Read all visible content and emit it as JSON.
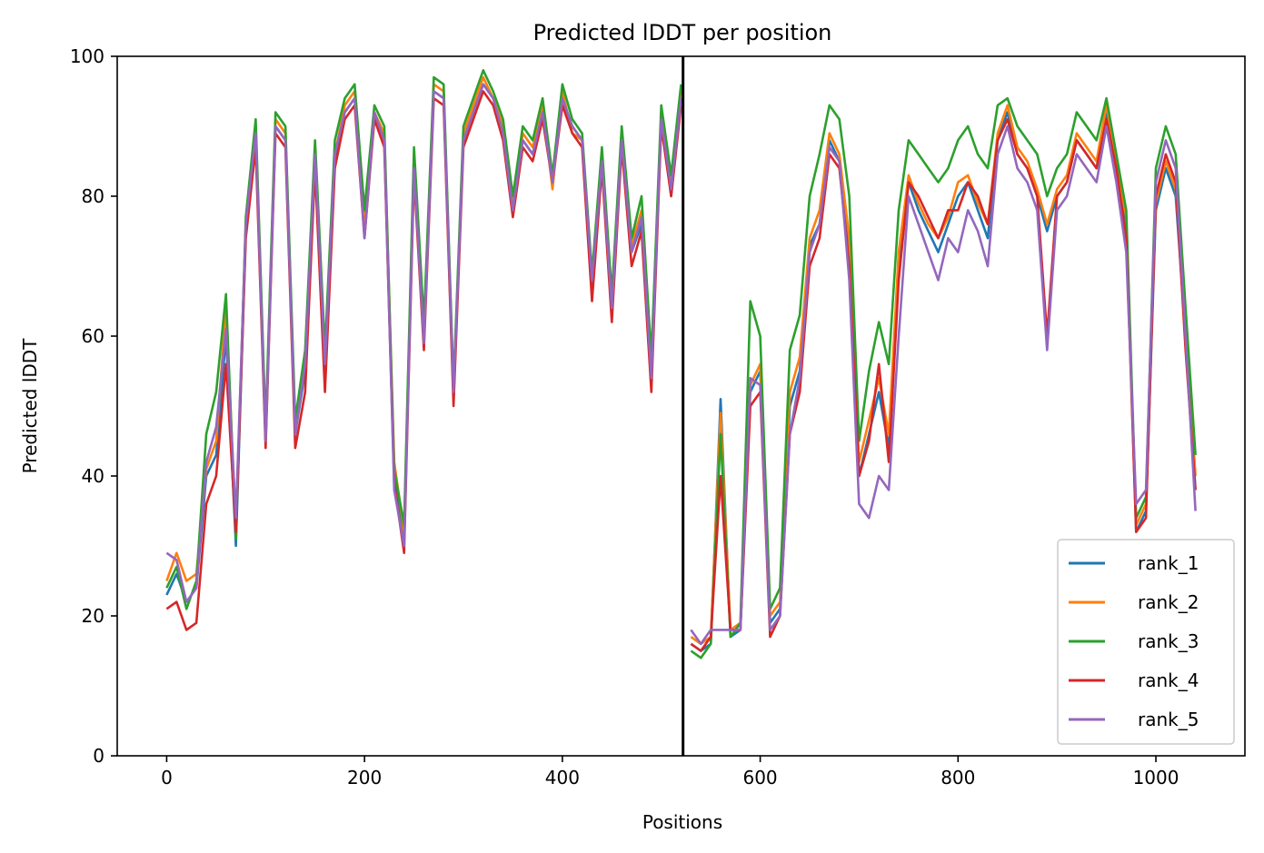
{
  "chart_data": {
    "type": "line",
    "title": "Predicted lDDT per position",
    "xlabel": "Positions",
    "ylabel": "Predicted lDDT",
    "xlim": [
      -50,
      1090
    ],
    "ylim": [
      0,
      100
    ],
    "xticks": [
      0,
      200,
      400,
      600,
      800,
      1000
    ],
    "yticks": [
      0,
      20,
      40,
      60,
      80,
      100
    ],
    "grid": false,
    "legend_position": "lower-right",
    "chain_boundary_x": 522,
    "x": [
      0,
      10,
      20,
      30,
      40,
      50,
      60,
      70,
      80,
      90,
      100,
      110,
      120,
      130,
      140,
      150,
      160,
      170,
      180,
      190,
      200,
      210,
      220,
      230,
      240,
      250,
      260,
      270,
      280,
      290,
      300,
      310,
      320,
      330,
      340,
      350,
      360,
      370,
      380,
      390,
      400,
      410,
      420,
      430,
      440,
      450,
      460,
      470,
      480,
      490,
      500,
      510,
      520,
      530,
      540,
      550,
      560,
      570,
      580,
      590,
      600,
      610,
      620,
      630,
      640,
      650,
      660,
      670,
      680,
      690,
      700,
      710,
      720,
      730,
      740,
      750,
      760,
      770,
      780,
      790,
      800,
      810,
      820,
      830,
      840,
      850,
      860,
      870,
      880,
      890,
      900,
      910,
      920,
      930,
      940,
      950,
      960,
      970,
      980,
      990,
      1000,
      1010,
      1020,
      1030,
      1040
    ],
    "series": [
      {
        "name": "rank_1",
        "color": "#1f77b4",
        "values": [
          23,
          26,
          22,
          24,
          40,
          43,
          60,
          30,
          75,
          88,
          45,
          90,
          88,
          46,
          55,
          85,
          55,
          85,
          92,
          94,
          75,
          92,
          88,
          40,
          31,
          85,
          60,
          95,
          94,
          51,
          88,
          92,
          96,
          94,
          89,
          78,
          88,
          86,
          92,
          82,
          94,
          90,
          88,
          68,
          85,
          64,
          88,
          72,
          76,
          54,
          91,
          80,
          94,
          16,
          15,
          16,
          51,
          17,
          18,
          52,
          55,
          19,
          21,
          50,
          55,
          73,
          76,
          88,
          85,
          72,
          40,
          46,
          52,
          44,
          70,
          82,
          78,
          75,
          72,
          76,
          80,
          82,
          78,
          74,
          88,
          92,
          86,
          84,
          80,
          75,
          80,
          82,
          88,
          86,
          84,
          92,
          84,
          76,
          32,
          35,
          78,
          84,
          80,
          60,
          38
        ]
      },
      {
        "name": "rank_2",
        "color": "#ff7f0e",
        "values": [
          25,
          29,
          25,
          26,
          41,
          45,
          64,
          33,
          76,
          90,
          46,
          91,
          89,
          47,
          57,
          87,
          57,
          86,
          93,
          95,
          76,
          92,
          89,
          42,
          32,
          86,
          61,
          96,
          95,
          52,
          89,
          93,
          97,
          94,
          90,
          79,
          89,
          87,
          93,
          81,
          95,
          89,
          88,
          67,
          86,
          65,
          89,
          73,
          78,
          56,
          92,
          82,
          95,
          17,
          16,
          17,
          49,
          18,
          19,
          53,
          56,
          20,
          22,
          52,
          57,
          74,
          78,
          89,
          86,
          74,
          42,
          48,
          54,
          46,
          72,
          83,
          79,
          76,
          74,
          77,
          82,
          83,
          79,
          76,
          89,
          93,
          87,
          85,
          81,
          76,
          81,
          83,
          89,
          87,
          85,
          93,
          85,
          77,
          33,
          36,
          79,
          85,
          81,
          62,
          40
        ]
      },
      {
        "name": "rank_3",
        "color": "#2ca02c",
        "values": [
          24,
          27,
          21,
          25,
          46,
          52,
          66,
          31,
          77,
          91,
          47,
          92,
          90,
          48,
          58,
          88,
          58,
          88,
          94,
          96,
          78,
          93,
          90,
          41,
          33,
          87,
          62,
          97,
          96,
          53,
          90,
          94,
          98,
          95,
          91,
          80,
          90,
          88,
          94,
          83,
          96,
          91,
          89,
          69,
          87,
          66,
          90,
          74,
          80,
          57,
          93,
          83,
          96,
          15,
          14,
          16,
          46,
          17,
          19,
          65,
          60,
          21,
          24,
          58,
          63,
          80,
          86,
          93,
          91,
          80,
          45,
          55,
          62,
          56,
          78,
          88,
          86,
          84,
          82,
          84,
          88,
          90,
          86,
          84,
          93,
          94,
          90,
          88,
          86,
          80,
          84,
          86,
          92,
          90,
          88,
          94,
          86,
          78,
          34,
          37,
          84,
          90,
          86,
          64,
          43
        ]
      },
      {
        "name": "rank_4",
        "color": "#d62728",
        "values": [
          21,
          22,
          18,
          19,
          36,
          40,
          56,
          32,
          74,
          87,
          44,
          89,
          87,
          44,
          52,
          84,
          52,
          84,
          91,
          93,
          74,
          91,
          87,
          39,
          29,
          83,
          58,
          94,
          93,
          50,
          87,
          91,
          95,
          93,
          88,
          77,
          87,
          85,
          91,
          82,
          93,
          89,
          87,
          65,
          84,
          62,
          87,
          70,
          75,
          52,
          90,
          80,
          93,
          16,
          15,
          17,
          40,
          18,
          18,
          50,
          52,
          17,
          20,
          46,
          52,
          70,
          74,
          86,
          84,
          70,
          40,
          45,
          56,
          42,
          68,
          82,
          80,
          77,
          74,
          78,
          78,
          82,
          80,
          76,
          88,
          91,
          86,
          84,
          80,
          60,
          80,
          82,
          88,
          86,
          84,
          91,
          84,
          74,
          32,
          34,
          80,
          86,
          82,
          58,
          38
        ]
      },
      {
        "name": "rank_5",
        "color": "#9467bd",
        "values": [
          29,
          28,
          22,
          24,
          42,
          47,
          61,
          34,
          76,
          89,
          45,
          90,
          88,
          46,
          56,
          86,
          56,
          86,
          92,
          94,
          74,
          92,
          88,
          38,
          30,
          84,
          59,
          95,
          94,
          52,
          88,
          92,
          96,
          94,
          89,
          78,
          88,
          86,
          92,
          82,
          94,
          90,
          88,
          68,
          85,
          64,
          88,
          72,
          77,
          54,
          91,
          81,
          94,
          18,
          16,
          18,
          18,
          18,
          18,
          54,
          53,
          18,
          20,
          46,
          54,
          72,
          76,
          87,
          85,
          68,
          36,
          34,
          40,
          38,
          60,
          80,
          76,
          72,
          68,
          74,
          72,
          78,
          75,
          70,
          86,
          90,
          84,
          82,
          78,
          58,
          78,
          80,
          86,
          84,
          82,
          90,
          82,
          72,
          36,
          38,
          82,
          88,
          84,
          60,
          35
        ]
      }
    ]
  }
}
